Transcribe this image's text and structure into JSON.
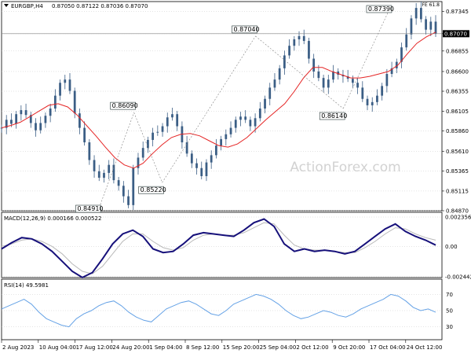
{
  "window": {
    "symbol_timeframe": "EURGBP,H4",
    "ohlc": "0.87050 0.87122 0.87036 0.87070",
    "corner_tag": "FE 61.8",
    "watermark": "ActionForex.com"
  },
  "colors": {
    "candle": "#3b5e85",
    "sma": "#e52525",
    "macd": "#16107a",
    "signal": "#b9b9b9",
    "rsi": "#65a2e6",
    "grid": "#c8c8c8",
    "pivot_line": "#808080",
    "watermark": "#d2d2d2"
  },
  "chart_data": [
    {
      "type": "candlestick",
      "pane": "price",
      "y_ticks": [
        "0.87345",
        "0.87070",
        "0.86855",
        "0.86600",
        "0.86355",
        "0.86105",
        "0.85860",
        "0.85610",
        "0.85365",
        "0.85115",
        "0.84870"
      ],
      "ylim": [
        0.8487,
        0.8743
      ],
      "x_ticks": [
        "2 Aug 2023",
        "10 Aug 04:00",
        "17 Aug 12:00",
        "24 Aug 20:00",
        "1 Sep 04:00",
        "8 Sep 12:00",
        "15 Sep 20:00",
        "25 Sep 04:00",
        "2 Oct 12:00",
        "9 Oct 20:00",
        "17 Oct 04:00",
        "24 Oct 12:00"
      ],
      "close_path_approx": [
        0.859,
        0.86,
        0.8595,
        0.8607,
        0.8612,
        0.8606,
        0.8596,
        0.8587,
        0.8596,
        0.8605,
        0.8614,
        0.863,
        0.8646,
        0.865,
        0.8636,
        0.8608,
        0.859,
        0.8572,
        0.855,
        0.8536,
        0.8528,
        0.8534,
        0.8544,
        0.8525,
        0.8518,
        0.8505,
        0.8494,
        0.854,
        0.8553,
        0.8565,
        0.8575,
        0.8584,
        0.8585,
        0.8592,
        0.8603,
        0.8607,
        0.8592,
        0.8572,
        0.8558,
        0.8546,
        0.854,
        0.853,
        0.8547,
        0.8556,
        0.8568,
        0.8576,
        0.8582,
        0.859,
        0.86,
        0.8604,
        0.86,
        0.8592,
        0.8602,
        0.8614,
        0.8626,
        0.864,
        0.865,
        0.8664,
        0.868,
        0.8692,
        0.87,
        0.8704,
        0.8698,
        0.8676,
        0.866,
        0.8652,
        0.864,
        0.865,
        0.866,
        0.8656,
        0.8654,
        0.8651,
        0.8646,
        0.864,
        0.8626,
        0.8618,
        0.8622,
        0.863,
        0.8642,
        0.8657,
        0.8664,
        0.8672,
        0.869,
        0.8706,
        0.8726,
        0.8739,
        0.8725,
        0.8712,
        0.8722,
        0.8707
      ],
      "sma_path_approx": [
        0.859,
        0.8593,
        0.8597,
        0.8604,
        0.8611,
        0.8618,
        0.862,
        0.8616,
        0.8606,
        0.8593,
        0.858,
        0.8566,
        0.8553,
        0.8544,
        0.854,
        0.8546,
        0.8558,
        0.8569,
        0.8578,
        0.8582,
        0.8583,
        0.858,
        0.8574,
        0.8568,
        0.8566,
        0.857,
        0.8578,
        0.8589,
        0.86,
        0.861,
        0.862,
        0.8635,
        0.8652,
        0.8665,
        0.8665,
        0.866,
        0.8656,
        0.8652,
        0.8652,
        0.8654,
        0.8657,
        0.866,
        0.8668,
        0.8682,
        0.8695,
        0.8703,
        0.8709
      ],
      "annotations": [
        {
          "label": "0.84910",
          "x_frac": 0.225,
          "price": 0.8491
        },
        {
          "label": "0.86090",
          "x_frac": 0.305,
          "price": 0.8609
        },
        {
          "label": "0.85220",
          "x_frac": 0.37,
          "price": 0.8522
        },
        {
          "label": "0.87040",
          "x_frac": 0.585,
          "price": 0.8704
        },
        {
          "label": "0.86140",
          "x_frac": 0.787,
          "price": 0.8614
        },
        {
          "label": "0.87390",
          "x_frac": 0.895,
          "price": 0.8739
        }
      ],
      "horizontal_line": 0.8707,
      "current_price_label": "0.87070"
    },
    {
      "type": "line",
      "pane": "macd",
      "title": "MACD(12,26,9) 0.000166 0.000522",
      "y_ticks": [
        "0.002356",
        "0.00",
        "-0.002442"
      ],
      "ylim": [
        -0.002442,
        0.002356
      ],
      "macd_path_approx": [
        -0.0002,
        0.0003,
        0.0007,
        0.0006,
        0.0002,
        -0.0004,
        -0.0012,
        -0.002,
        -0.0025,
        -0.0021,
        -0.001,
        0.0002,
        0.001,
        0.0013,
        0.0008,
        -0.0002,
        -0.0005,
        -0.0004,
        0.0002,
        0.0009,
        0.0011,
        0.001,
        0.0009,
        0.0008,
        0.0013,
        0.0019,
        0.0022,
        0.0016,
        0.0002,
        -0.0004,
        -0.0002,
        -0.0004,
        -0.0003,
        -0.0004,
        -0.0006,
        -0.0004,
        0.0002,
        0.0008,
        0.0014,
        0.0018,
        0.0012,
        0.0008,
        0.0005,
        0.0001
      ],
      "signal_path_approx": [
        0.0,
        0.0002,
        0.0005,
        0.0006,
        0.0004,
        0.0,
        -0.0006,
        -0.0014,
        -0.002,
        -0.0022,
        -0.0016,
        -0.0006,
        0.0004,
        0.001,
        0.001,
        0.0004,
        -0.0001,
        -0.0003,
        -0.0001,
        0.0005,
        0.0009,
        0.001,
        0.0009,
        0.0009,
        0.0011,
        0.0015,
        0.0019,
        0.0018,
        0.0009,
        0.0001,
        -0.0002,
        -0.0003,
        -0.0003,
        -0.0004,
        -0.0005,
        -0.0005,
        -0.0001,
        0.0004,
        0.001,
        0.0015,
        0.0014,
        0.001,
        0.0007,
        0.0005
      ]
    },
    {
      "type": "line",
      "pane": "rsi",
      "title": "RSI(14) 49.5981",
      "y_ticks": [
        "70",
        "50",
        "30"
      ],
      "ylim": [
        14,
        86
      ],
      "rsi_path_approx": [
        52,
        56,
        60,
        64,
        58,
        48,
        40,
        36,
        32,
        30,
        40,
        46,
        50,
        56,
        60,
        62,
        56,
        48,
        42,
        38,
        36,
        44,
        52,
        56,
        60,
        62,
        58,
        52,
        46,
        44,
        50,
        58,
        62,
        66,
        70,
        68,
        64,
        58,
        50,
        44,
        40,
        42,
        46,
        50,
        48,
        44,
        42,
        46,
        52,
        56,
        60,
        64,
        70,
        68,
        62,
        54,
        50,
        52,
        48
      ]
    }
  ]
}
